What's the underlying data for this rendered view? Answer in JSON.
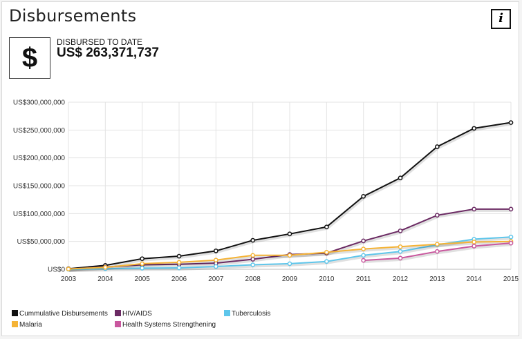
{
  "header": {
    "title": "Disbursements",
    "info_label": "i"
  },
  "summary": {
    "icon_symbol": "$",
    "label": "DISBURSED TO DATE",
    "value": "US$ 263,371,737"
  },
  "chart_data": {
    "type": "line",
    "x": [
      "2003",
      "2004",
      "2005",
      "2006",
      "2007",
      "2008",
      "2009",
      "2010",
      "2011",
      "2012",
      "2013",
      "2014",
      "2015"
    ],
    "yticks": [
      "US$0",
      "US$50,000,000",
      "US$100,000,000",
      "US$150,000,000",
      "US$200,000,000",
      "US$250,000,000",
      "US$300,000,000"
    ],
    "ylim": [
      0,
      300000000
    ],
    "grid": true,
    "legend_position": "bottom",
    "series": [
      {
        "name": "Cummulative Disbursements",
        "color": "#111111",
        "values": [
          1000000,
          7000000,
          19000000,
          23500000,
          33000000,
          52000000,
          63500000,
          76000000,
          131000000,
          164000000,
          220000000,
          253000000,
          263371737
        ]
      },
      {
        "name": "HIV/AIDS",
        "color": "#6b2a63",
        "values": [
          500000,
          4000000,
          8000000,
          9000000,
          11000000,
          18000000,
          26500000,
          29000000,
          51000000,
          69000000,
          97000000,
          108000000,
          108000000
        ]
      },
      {
        "name": "Tuberculosis",
        "color": "#5ec6eb",
        "values": [
          0,
          1000000,
          2000000,
          2500000,
          5000000,
          8000000,
          10000000,
          14000000,
          25000000,
          32000000,
          44000000,
          54000000,
          58000000
        ]
      },
      {
        "name": "Malaria",
        "color": "#f5b335",
        "values": [
          500000,
          3500000,
          10000000,
          12500000,
          16500000,
          25000000,
          25000000,
          30500000,
          36500000,
          40500000,
          45000000,
          49000000,
          50000000
        ]
      },
      {
        "name": "Health Systems Strengthening",
        "color": "#c9579e",
        "values": [
          null,
          null,
          null,
          null,
          null,
          null,
          null,
          null,
          16000000,
          20000000,
          32000000,
          41500000,
          47000000
        ]
      }
    ]
  }
}
